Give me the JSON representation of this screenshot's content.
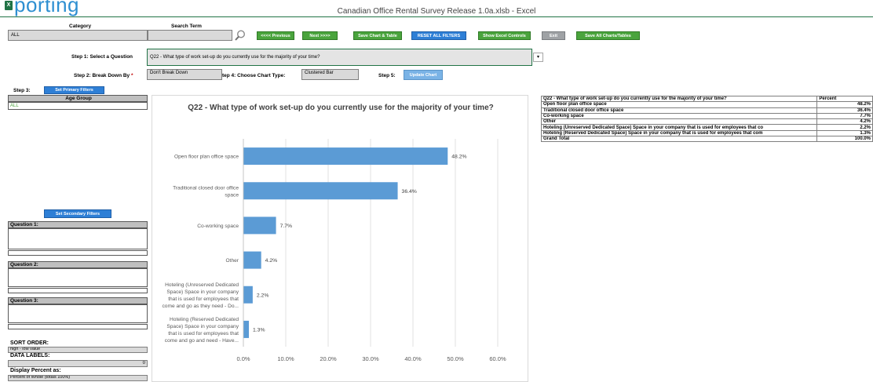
{
  "window": {
    "title": "Canadian Office Rental Survey Release 1.0a.xlsb - Excel",
    "partial_title": "porting",
    "logo": "X"
  },
  "top": {
    "category_label": "Category",
    "category_value": "ALL",
    "search_label": "Search Term",
    "search_value": "",
    "search_icon": "magnifier-icon",
    "buttons": {
      "previous": "<<<< Previous",
      "next": "Next >>>>",
      "save_chart_table": "Save Chart & Table",
      "reset_filters": "RESET ALL FILTERS",
      "show_excel": "Show Excel Controls",
      "exit": "Exit",
      "save_all": "Save All Charts/Tables"
    }
  },
  "steps": {
    "step1_label": "Step 1: Select a Question",
    "step1_value": "Q22 - What type of work set-up do you currently use for the majority of your time?",
    "step2_label": "Step 2: Break Down By",
    "step2_required": "*",
    "step2_value": "Don't Break Down",
    "step4_label": "tep 4: Choose Chart Type:",
    "step4_value": "Clustered Bar",
    "step5_label": "Step 5:",
    "update_chart": "Update Chart",
    "step3_label": "Step 3:",
    "set_primary": "Set Primary Filters"
  },
  "filters": {
    "age_group_label": "Age Group",
    "age_group_value": "ALL",
    "set_secondary": "Set Secondary Filters",
    "question1_label": "Question 1:",
    "question2_label": "Question 2:",
    "question3_label": "Question 3:",
    "sort_order_label": "SORT ORDER:",
    "sort_order_value": "high - low value",
    "data_labels_label": "DATA LABELS:",
    "data_labels_value": "0",
    "display_percent_label": "Display Percent as:",
    "display_percent_value": "Percent of Whole (totals 100%)"
  },
  "chart_data": {
    "type": "bar",
    "orientation": "horizontal",
    "title": "Q22 - What type of work set-up do you currently use for the majority of your time?",
    "categories": [
      [
        "Open floor plan office space"
      ],
      [
        "Traditional closed door office",
        "space"
      ],
      [
        "Co-working space"
      ],
      [
        "Other"
      ],
      [
        "Hoteling (Unreserved Dedicated",
        "Space) Space in your company",
        "that is used for employees that",
        "come and go as they need - Do..."
      ],
      [
        "Hoteling (Reserved Dedicated",
        "Space) Space in your company",
        "that is used for employees that",
        "come and go and need - Have..."
      ]
    ],
    "values": [
      48.2,
      36.4,
      7.7,
      4.2,
      2.2,
      1.3
    ],
    "data_labels": [
      "48.2%",
      "36.4%",
      "7.7%",
      "4.2%",
      "2.2%",
      "1.3%"
    ],
    "x_ticks": [
      "0.0%",
      "10.0%",
      "20.0%",
      "30.0%",
      "40.0%",
      "50.0%",
      "60.0%"
    ],
    "xlim": [
      0,
      60
    ],
    "grid": true,
    "bar_color": "#5b9bd5"
  },
  "table": {
    "header_question": "Q22 - What type of work set-up do you currently use for the majority of your time?",
    "header_value": "Percent",
    "rows": [
      {
        "label": "Open floor plan office space",
        "value": "48.2%"
      },
      {
        "label": "Traditional closed door office space",
        "value": "36.4%"
      },
      {
        "label": "Co-working space",
        "value": "7.7%"
      },
      {
        "label": "Other",
        "value": "4.2%"
      },
      {
        "label": "Hoteling (Unreserved Dedicated Space) Space in your company that is used for employees that co",
        "value": "2.2%"
      },
      {
        "label": "Hoteling (Reserved Dedicated Space) Space in your company that is used for employees that com",
        "value": "1.3%"
      }
    ],
    "total_label": "Grand Total",
    "total_value": "100.0%"
  }
}
